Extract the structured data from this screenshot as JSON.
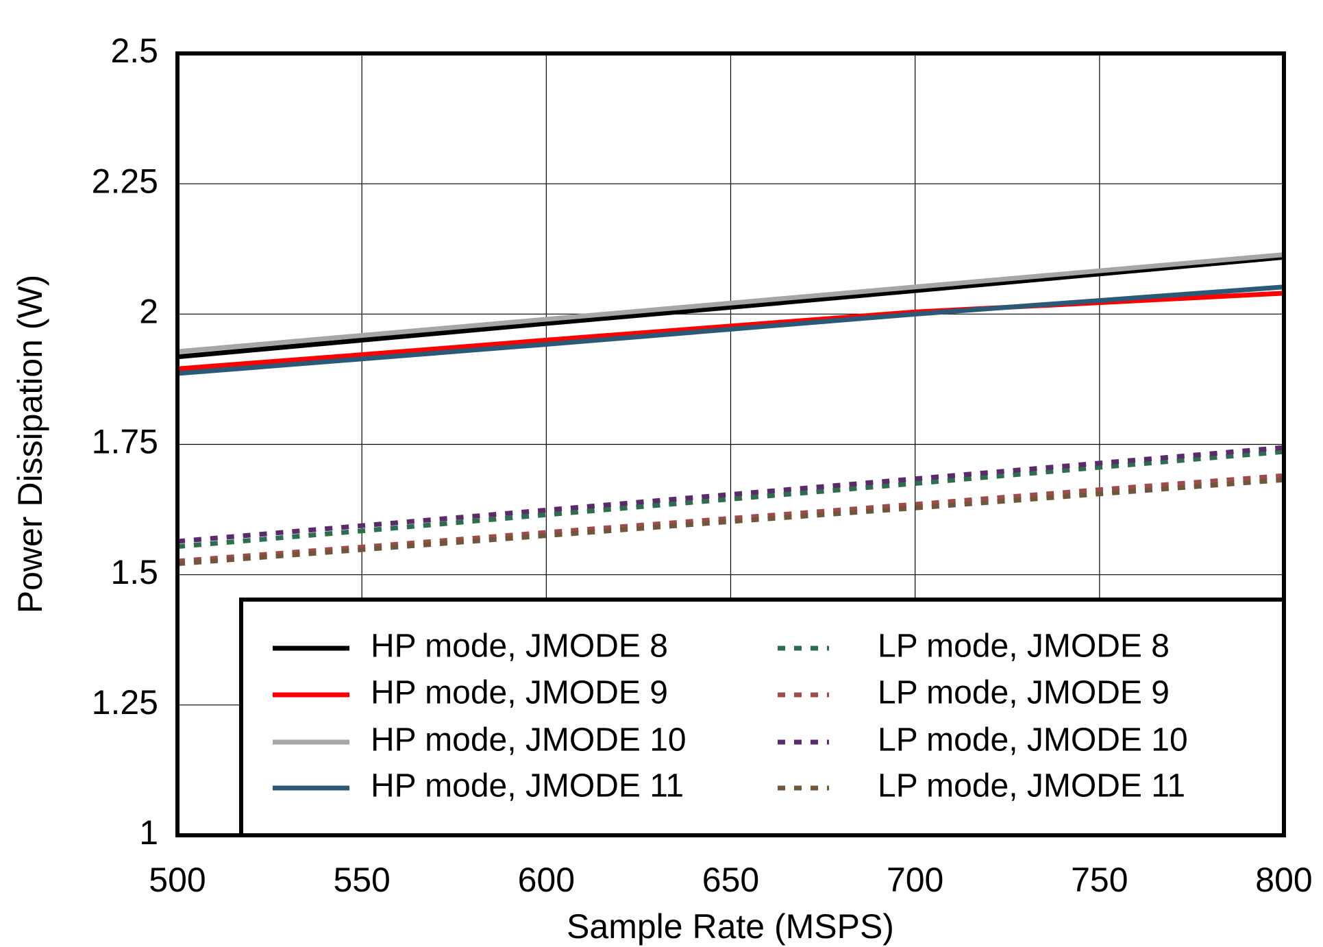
{
  "chart_data": {
    "type": "line",
    "x_label": "Sample Rate (MSPS)",
    "y_label": "Power Dissipation (W)",
    "x": [
      500,
      550,
      600,
      650,
      700,
      750,
      800
    ],
    "xlim": [
      500,
      800
    ],
    "xticks": [
      500,
      550,
      600,
      650,
      700,
      750,
      800
    ],
    "ylim": [
      1,
      2.5
    ],
    "yticks": [
      1,
      1.25,
      1.5,
      1.75,
      2,
      2.25,
      2.5
    ],
    "grid": true,
    "legend": "lower right",
    "series": [
      {
        "name": "HP mode, JMODE 8",
        "color": "#000000",
        "style": "solid",
        "values": [
          1.918,
          1.95,
          1.982,
          2.013,
          2.045,
          2.077,
          2.109
        ]
      },
      {
        "name": "HP mode, JMODE 9",
        "color": "#ff0000",
        "style": "solid",
        "values": [
          1.895,
          1.922,
          1.95,
          1.977,
          2.004,
          2.022,
          2.04
        ]
      },
      {
        "name": "HP mode, JMODE 10",
        "color": "#a6a6a6",
        "style": "solid",
        "values": [
          1.928,
          1.959,
          1.99,
          2.021,
          2.052,
          2.083,
          2.114
        ]
      },
      {
        "name": "HP mode, JMODE 11",
        "color": "#2a5a78",
        "style": "solid",
        "values": [
          1.886,
          1.914,
          1.942,
          1.971,
          2.0,
          2.026,
          2.052
        ]
      },
      {
        "name": "LP mode, JMODE 8",
        "color": "#2e6e4e",
        "style": "dashed",
        "values": [
          1.554,
          1.584,
          1.615,
          1.645,
          1.675,
          1.706,
          1.736
        ]
      },
      {
        "name": "LP mode, JMODE 9",
        "color": "#a04a4a",
        "style": "dashed",
        "values": [
          1.526,
          1.553,
          1.581,
          1.608,
          1.635,
          1.663,
          1.69
        ]
      },
      {
        "name": "LP mode, JMODE 10",
        "color": "#5a2a6a",
        "style": "dashed",
        "values": [
          1.564,
          1.594,
          1.624,
          1.654,
          1.684,
          1.714,
          1.744
        ]
      },
      {
        "name": "LP mode, JMODE 11",
        "color": "#70563a",
        "style": "dashed",
        "values": [
          1.521,
          1.548,
          1.575,
          1.602,
          1.628,
          1.655,
          1.682
        ]
      }
    ]
  }
}
